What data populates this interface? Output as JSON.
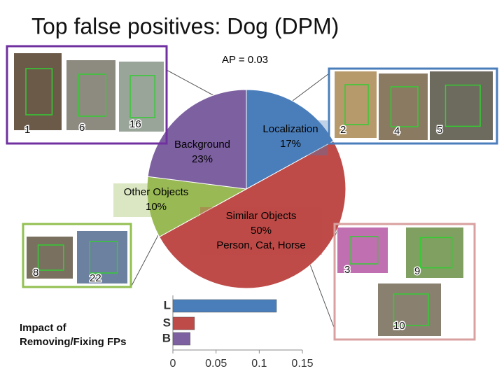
{
  "title": "Top false positives: Dog (DPM)",
  "chart_data": [
    {
      "type": "pie",
      "annotation": "AP = 0.03",
      "categories": [
        "Localization",
        "Similar Objects",
        "Other Objects",
        "Background"
      ],
      "values": [
        17,
        50,
        10,
        23
      ],
      "value_labels": [
        "17%",
        "50%",
        "10%",
        "23%"
      ],
      "details": [
        null,
        "Person, Cat, Horse",
        null,
        null
      ],
      "colors": [
        "#4a7ebb",
        "#be4b48",
        "#98b954",
        "#7d60a0"
      ]
    },
    {
      "type": "hbar",
      "title": "Impact of Removing/Fixing FPs",
      "categories": [
        "L",
        "S",
        "B"
      ],
      "values": [
        0.12,
        0.025,
        0.02
      ],
      "colors": [
        "#4a7ebb",
        "#be4b48",
        "#7d60a0"
      ],
      "xlim": [
        0,
        0.15
      ],
      "xticks": [
        0,
        0.05,
        0.1,
        0.15
      ]
    }
  ],
  "image_groups": [
    {
      "labels": [
        1,
        6,
        16
      ]
    },
    {
      "labels": [
        2,
        4,
        5
      ]
    },
    {
      "labels": [
        8,
        22
      ]
    },
    {
      "labels": [
        3,
        9,
        10
      ]
    }
  ]
}
